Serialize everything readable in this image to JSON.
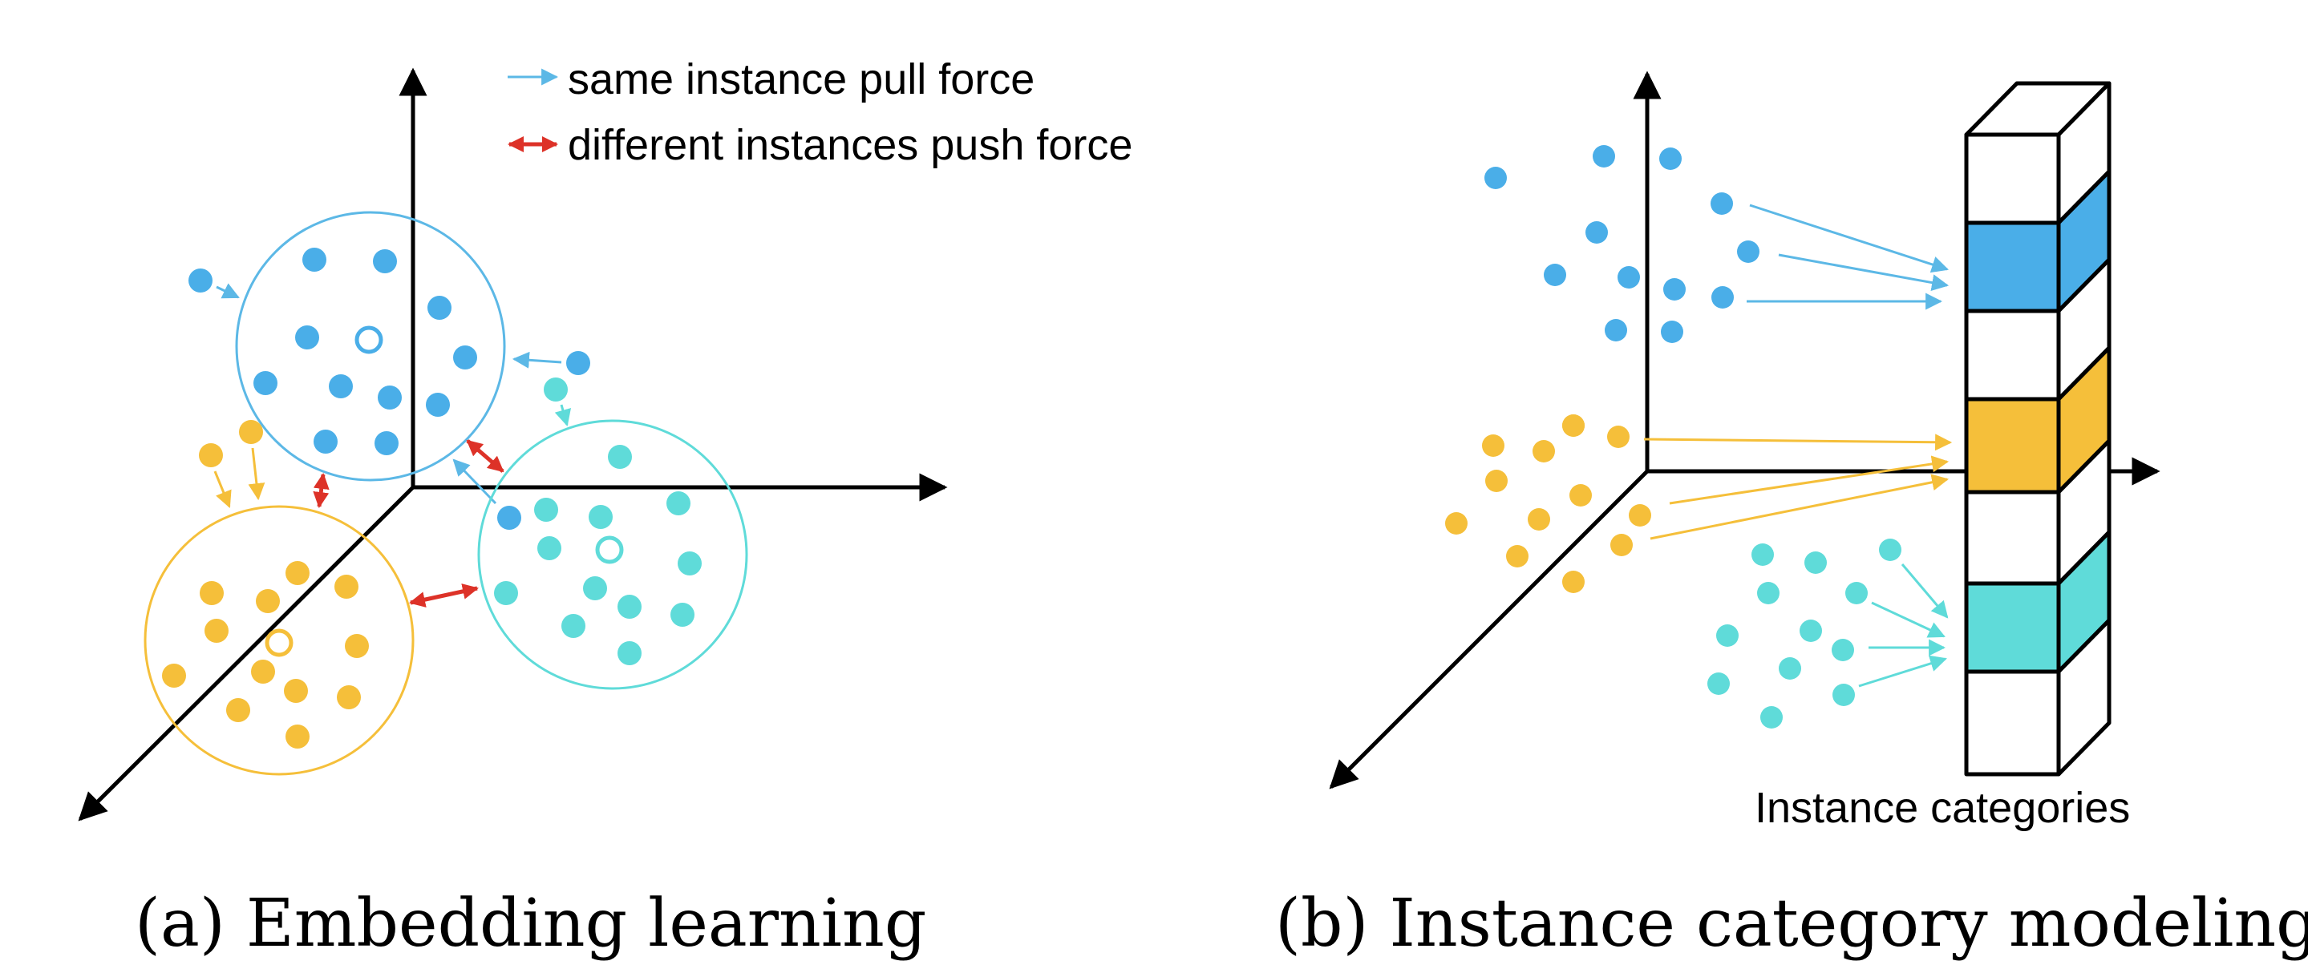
{
  "colors": {
    "blue": "#4aaee8",
    "cyan": "#5fdbd9",
    "yellow": "#f5bf3a",
    "pull_arrow": "#5cb8e6",
    "push_arrow": "#dd3228",
    "axis": "#000000"
  },
  "panel_a": {
    "caption": "(a) Embedding learning",
    "legend": {
      "pull_label": "same instance pull force",
      "push_label": "different instances push force"
    }
  },
  "panel_b": {
    "caption": "(b) Instance category modeling",
    "bar_label": "Instance categories",
    "bar_cells": [
      "white",
      "blue",
      "white",
      "yellow",
      "white",
      "cyan",
      "white"
    ]
  }
}
